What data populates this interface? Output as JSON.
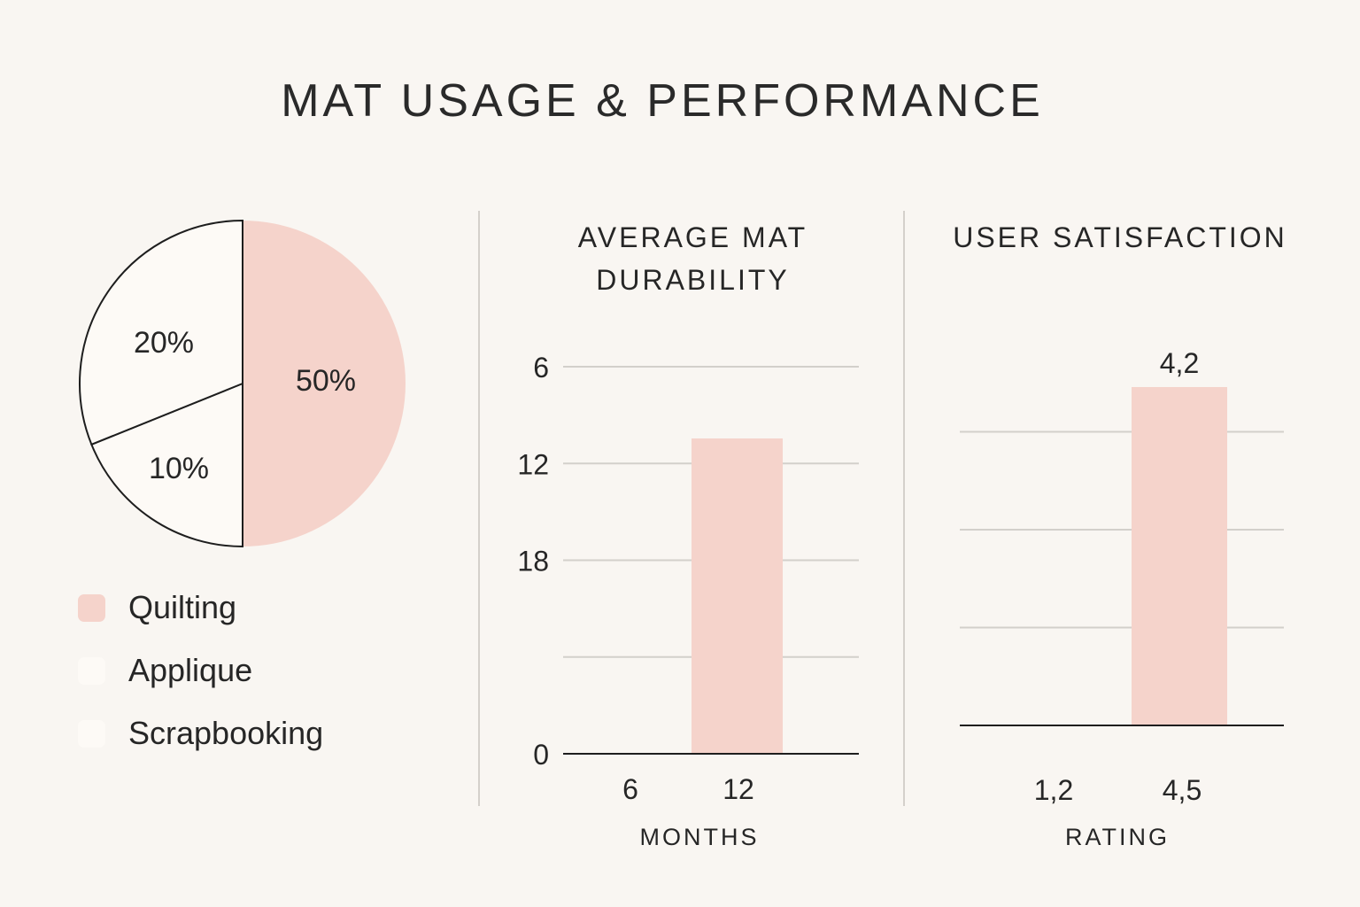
{
  "title": "MAT USAGE & PERFORMANCE",
  "colors": {
    "background": "#f9f6f2",
    "accent": "#f5d3cb",
    "light_slice": "#fdfaf6",
    "gridline": "#d3d0cb",
    "axis": "#262626",
    "text": "#262626"
  },
  "chart_data": [
    {
      "type": "pie",
      "title": "",
      "slices": [
        {
          "label": "Quilting",
          "value": 50,
          "display": "50%",
          "color": "#f5d3cb"
        },
        {
          "label": "Applique",
          "value": 10,
          "display": "10%",
          "color": "#fdfaf6"
        },
        {
          "label": "Scrapbooking",
          "value": 20,
          "display": "20%",
          "color": "#fdfaf6"
        }
      ],
      "legend": [
        "Quilting",
        "Applique",
        "Scrapbooking"
      ],
      "legend_position": "bottom-left"
    },
    {
      "type": "bar",
      "title": "AVERAGE MAT DURABILITY",
      "title_lines": [
        "AVERAGE MAT",
        "DURABILITY"
      ],
      "xlabel": "MONTHS",
      "ylabel": "",
      "categories": [
        "6",
        "12"
      ],
      "values": [
        0,
        null
      ],
      "y_ticks": [
        {
          "label": "6",
          "level": 4
        },
        {
          "label": "12",
          "level": 3
        },
        {
          "label": "18",
          "level": 2
        },
        {
          "label": "",
          "level": 1
        },
        {
          "label": "0",
          "level": 0
        }
      ],
      "y_levels": 4,
      "bar_height_fraction": 0.815,
      "grid": true
    },
    {
      "type": "bar",
      "title": "USER SATISFACTION",
      "xlabel": "RATING",
      "ylabel": "",
      "categories": [
        "1,2",
        "4,5"
      ],
      "values": [
        0,
        4.2
      ],
      "data_labels": [
        "",
        "4,2"
      ],
      "y_levels": 3,
      "bar_height_fraction": 1.145,
      "grid": true
    }
  ]
}
